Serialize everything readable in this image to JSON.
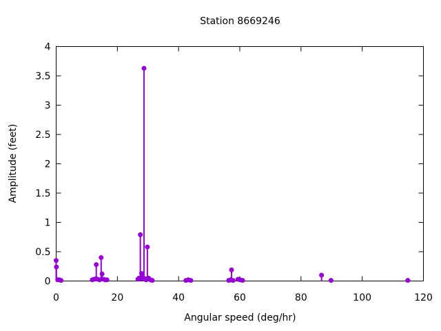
{
  "page": {
    "background": "#ffffff"
  },
  "chart_data": {
    "type": "scatter",
    "style": "stem (impulses + filled points, gnuplot style)",
    "title": "Station 8669246",
    "xlabel": "Angular speed (deg/hr)",
    "ylabel": "Amplitude (feet)",
    "xlim": [
      0,
      120
    ],
    "ylim": [
      0,
      4
    ],
    "xticks": [
      0,
      20,
      40,
      60,
      80,
      100,
      120
    ],
    "yticks": [
      0,
      0.5,
      1,
      1.5,
      2,
      2.5,
      3,
      3.5,
      4
    ],
    "grid": false,
    "legend": null,
    "point_color": "#9400d3",
    "text_color": "#000000",
    "border_color": "#000000",
    "points": [
      [
        0.0,
        0.35
      ],
      [
        0.08,
        0.24
      ],
      [
        0.5,
        0.02
      ],
      [
        1.0,
        0.02
      ],
      [
        1.6,
        0.01
      ],
      [
        11.8,
        0.02
      ],
      [
        12.4,
        0.03
      ],
      [
        13.0,
        0.04
      ],
      [
        13.1,
        0.28
      ],
      [
        13.6,
        0.03
      ],
      [
        14.2,
        0.02
      ],
      [
        14.7,
        0.4
      ],
      [
        15.0,
        0.12
      ],
      [
        15.5,
        0.03
      ],
      [
        16.0,
        0.02
      ],
      [
        16.6,
        0.02
      ],
      [
        26.7,
        0.03
      ],
      [
        27.1,
        0.05
      ],
      [
        27.5,
        0.79
      ],
      [
        27.9,
        0.13
      ],
      [
        28.2,
        0.06
      ],
      [
        28.7,
        3.63
      ],
      [
        29.1,
        0.04
      ],
      [
        29.4,
        0.02
      ],
      [
        29.8,
        0.58
      ],
      [
        30.2,
        0.05
      ],
      [
        30.8,
        0.02
      ],
      [
        31.4,
        0.01
      ],
      [
        42.4,
        0.01
      ],
      [
        43.2,
        0.02
      ],
      [
        44.0,
        0.01
      ],
      [
        56.4,
        0.01
      ],
      [
        57.0,
        0.02
      ],
      [
        57.3,
        0.19
      ],
      [
        57.8,
        0.01
      ],
      [
        59.4,
        0.03
      ],
      [
        60.1,
        0.02
      ],
      [
        60.9,
        0.01
      ],
      [
        86.7,
        0.1
      ],
      [
        89.8,
        0.01
      ],
      [
        114.9,
        0.01
      ]
    ]
  }
}
